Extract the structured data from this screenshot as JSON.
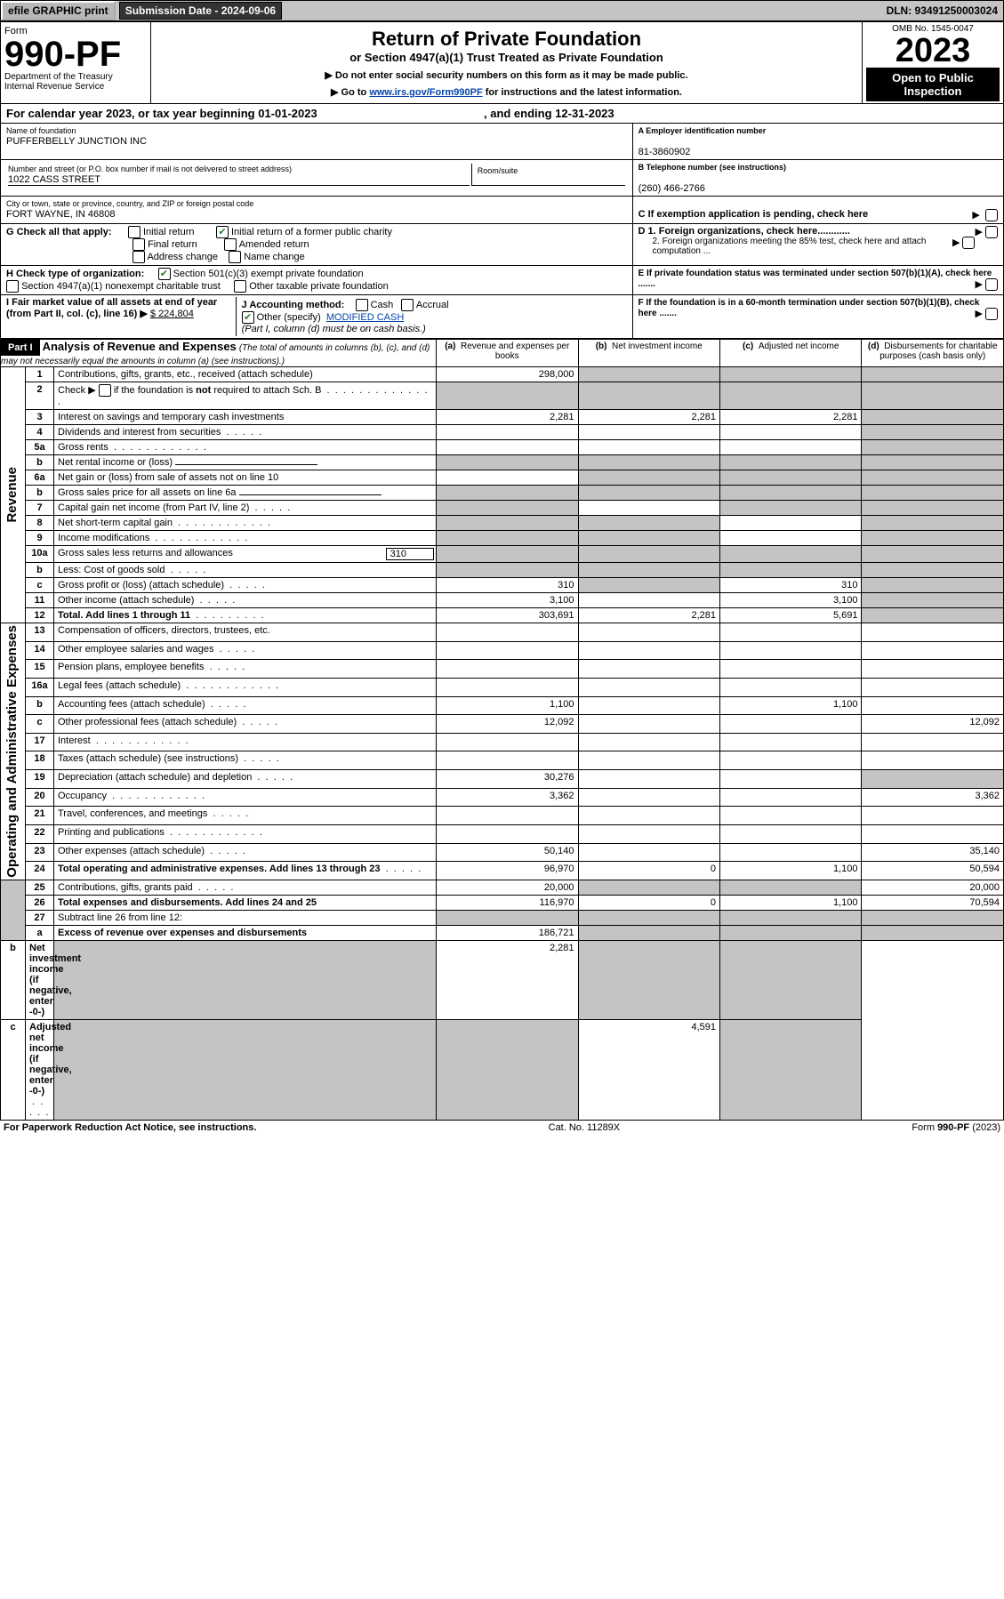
{
  "topbar": {
    "efile": "efile GRAPHIC print",
    "sub_label": "Submission Date - 2024-09-06",
    "dln": "DLN: 93491250003024"
  },
  "header": {
    "form_word": "Form",
    "form_num": "990-PF",
    "dept": "Department of the Treasury\nInternal Revenue Service",
    "title": "Return of Private Foundation",
    "subtitle": "or Section 4947(a)(1) Trust Treated as Private Foundation",
    "note1": "▶ Do not enter social security numbers on this form as it may be made public.",
    "note2_pre": "▶ Go to ",
    "note2_link": "www.irs.gov/Form990PF",
    "note2_post": " for instructions and the latest information.",
    "omb": "OMB No. 1545-0047",
    "year": "2023",
    "open": "Open to Public Inspection"
  },
  "calyear": {
    "begin": "For calendar year 2023, or tax year beginning 01-01-2023",
    "end": ", and ending 12-31-2023"
  },
  "org": {
    "name_label": "Name of foundation",
    "name": "PUFFERBELLY JUNCTION INC",
    "ein_label": "A Employer identification number",
    "ein": "81-3860902",
    "addr_label": "Number and street (or P.O. box number if mail is not delivered to street address)",
    "addr": "1022 CASS STREET",
    "room_label": "Room/suite",
    "phone_label": "B Telephone number (see instructions)",
    "phone": "(260) 466-2766",
    "city_label": "City or town, state or province, country, and ZIP or foreign postal code",
    "city": "FORT WAYNE, IN  46808",
    "c_label": "C If exemption application is pending, check here"
  },
  "g": {
    "label": "G Check all that apply:",
    "o1": "Initial return",
    "o2": "Final return",
    "o3": "Address change",
    "o4": "Initial return of a former public charity",
    "o5": "Amended return",
    "o6": "Name change"
  },
  "d": {
    "d1": "D 1. Foreign organizations, check here............",
    "d2": "2. Foreign organizations meeting the 85% test, check here and attach computation ..."
  },
  "h": {
    "label": "H Check type of organization:",
    "o1": "Section 501(c)(3) exempt private foundation",
    "o2": "Section 4947(a)(1) nonexempt charitable trust",
    "o3": "Other taxable private foundation"
  },
  "e": {
    "label": "E  If private foundation status was terminated under section 507(b)(1)(A), check here ......."
  },
  "i": {
    "label": "I Fair market value of all assets at end of year (from Part II, col. (c), line 16) ▶",
    "val": "$  224,804"
  },
  "j": {
    "label": "J Accounting method:",
    "o1": "Cash",
    "o2": "Accrual",
    "o3": "Other (specify)",
    "spec": "MODIFIED CASH",
    "note": "(Part I, column (d) must be on cash basis.)"
  },
  "f": {
    "label": "F  If the foundation is in a 60-month termination under section 507(b)(1)(B), check here ......."
  },
  "part1": {
    "head": "Part I",
    "title": "Analysis of Revenue and Expenses",
    "title_note": " (The total of amounts in columns (b), (c), and (d) may not necessarily equal the amounts in column (a) (see instructions).)",
    "col_a": "(a)",
    "col_a2": "Revenue and expenses per books",
    "col_b": "(b)",
    "col_b2": "Net investment income",
    "col_c": "(c)",
    "col_c2": "Adjusted net income",
    "col_d": "(d)",
    "col_d2": "Disbursements for charitable purposes (cash basis only)"
  },
  "revenue_label": "Revenue",
  "op_label": "Operating and Administrative Expenses",
  "rows": [
    {
      "l": "1",
      "d": "Contributions, gifts, grants, etc., received (attach schedule)",
      "a": "298,000",
      "b": "",
      "c": "",
      "dcol": "",
      "bgrey": true,
      "cgrey": true,
      "dgrey": true
    },
    {
      "l": "2",
      "d": "Check ▶ ☐ if the foundation is not required to attach Sch. B",
      "a": "",
      "b": "",
      "c": "",
      "dcol": "",
      "agrey": true,
      "bgrey": true,
      "cgrey": true,
      "dgrey": true,
      "bold_not": true,
      "dotsfull": true
    },
    {
      "l": "3",
      "d": "Interest on savings and temporary cash investments",
      "a": "2,281",
      "b": "2,281",
      "c": "2,281",
      "dcol": "",
      "dgrey": true
    },
    {
      "l": "4",
      "d": "Dividends and interest from securities",
      "a": "",
      "b": "",
      "c": "",
      "dcol": "",
      "dgrey": true,
      "dots": true
    },
    {
      "l": "5a",
      "d": "Gross rents",
      "a": "",
      "b": "",
      "c": "",
      "dcol": "",
      "dgrey": true,
      "dotsfull": true
    },
    {
      "l": "b",
      "d": "Net rental income or (loss)",
      "a": "",
      "b": "",
      "c": "",
      "dcol": "",
      "agrey": true,
      "bgrey": true,
      "cgrey": true,
      "dgrey": true,
      "underline_after": true
    },
    {
      "l": "6a",
      "d": "Net gain or (loss) from sale of assets not on line 10",
      "a": "",
      "b": "",
      "c": "",
      "dcol": "",
      "bgrey": true,
      "cgrey": true,
      "dgrey": true
    },
    {
      "l": "b",
      "d": "Gross sales price for all assets on line 6a",
      "a": "",
      "b": "",
      "c": "",
      "dcol": "",
      "agrey": true,
      "bgrey": true,
      "cgrey": true,
      "dgrey": true,
      "underline_after": true
    },
    {
      "l": "7",
      "d": "Capital gain net income (from Part IV, line 2)",
      "a": "",
      "b": "",
      "c": "",
      "dcol": "",
      "agrey": true,
      "cgrey": true,
      "dgrey": true,
      "dots": true
    },
    {
      "l": "8",
      "d": "Net short-term capital gain",
      "a": "",
      "b": "",
      "c": "",
      "dcol": "",
      "agrey": true,
      "bgrey": true,
      "dgrey": true,
      "dotsfull": true
    },
    {
      "l": "9",
      "d": "Income modifications",
      "a": "",
      "b": "",
      "c": "",
      "dcol": "",
      "agrey": true,
      "bgrey": true,
      "dgrey": true,
      "dotsfull": true
    },
    {
      "l": "10a",
      "d": "Gross sales less returns and allowances",
      "a": "",
      "b": "",
      "c": "",
      "dcol": "",
      "agrey": true,
      "bgrey": true,
      "cgrey": true,
      "dgrey": true,
      "val_inline": "310"
    },
    {
      "l": "b",
      "d": "Less: Cost of goods sold",
      "a": "",
      "b": "",
      "c": "",
      "dcol": "",
      "agrey": true,
      "bgrey": true,
      "cgrey": true,
      "dgrey": true,
      "dots": true
    },
    {
      "l": "c",
      "d": "Gross profit or (loss) (attach schedule)",
      "a": "310",
      "b": "",
      "c": "310",
      "dcol": "",
      "bgrey": true,
      "dgrey": true,
      "dots": true
    },
    {
      "l": "11",
      "d": "Other income (attach schedule)",
      "a": "3,100",
      "b": "",
      "c": "3,100",
      "dcol": "",
      "dgrey": true,
      "dots": true
    },
    {
      "l": "12",
      "d": "Total. Add lines 1 through 11",
      "a": "303,691",
      "b": "2,281",
      "c": "5,691",
      "dcol": "",
      "dgrey": true,
      "bold": true,
      "dotsfull": true
    },
    {
      "l": "13",
      "d": "Compensation of officers, directors, trustees, etc.",
      "a": "",
      "b": "",
      "c": "",
      "dcol": ""
    },
    {
      "l": "14",
      "d": "Other employee salaries and wages",
      "a": "",
      "b": "",
      "c": "",
      "dcol": "",
      "dots": true
    },
    {
      "l": "15",
      "d": "Pension plans, employee benefits",
      "a": "",
      "b": "",
      "c": "",
      "dcol": "",
      "dots": true
    },
    {
      "l": "16a",
      "d": "Legal fees (attach schedule)",
      "a": "",
      "b": "",
      "c": "",
      "dcol": "",
      "dotsfull": true
    },
    {
      "l": "b",
      "d": "Accounting fees (attach schedule)",
      "a": "1,100",
      "b": "",
      "c": "1,100",
      "dcol": "",
      "dots": true
    },
    {
      "l": "c",
      "d": "Other professional fees (attach schedule)",
      "a": "12,092",
      "b": "",
      "c": "",
      "dcol": "12,092",
      "dots": true
    },
    {
      "l": "17",
      "d": "Interest",
      "a": "",
      "b": "",
      "c": "",
      "dcol": "",
      "dotsfull": true
    },
    {
      "l": "18",
      "d": "Taxes (attach schedule) (see instructions)",
      "a": "",
      "b": "",
      "c": "",
      "dcol": "",
      "dots": true
    },
    {
      "l": "19",
      "d": "Depreciation (attach schedule) and depletion",
      "a": "30,276",
      "b": "",
      "c": "",
      "dcol": "",
      "dgrey": true,
      "dots": true
    },
    {
      "l": "20",
      "d": "Occupancy",
      "a": "3,362",
      "b": "",
      "c": "",
      "dcol": "3,362",
      "dotsfull": true
    },
    {
      "l": "21",
      "d": "Travel, conferences, and meetings",
      "a": "",
      "b": "",
      "c": "",
      "dcol": "",
      "dots": true
    },
    {
      "l": "22",
      "d": "Printing and publications",
      "a": "",
      "b": "",
      "c": "",
      "dcol": "",
      "dotsfull": true
    },
    {
      "l": "23",
      "d": "Other expenses (attach schedule)",
      "a": "50,140",
      "b": "",
      "c": "",
      "dcol": "35,140",
      "dots": true
    },
    {
      "l": "24",
      "d": "Total operating and administrative expenses. Add lines 13 through 23",
      "a": "96,970",
      "b": "0",
      "c": "1,100",
      "dcol": "50,594",
      "bold": true,
      "dots": true
    },
    {
      "l": "25",
      "d": "Contributions, gifts, grants paid",
      "a": "20,000",
      "b": "",
      "c": "",
      "dcol": "20,000",
      "bgrey": true,
      "cgrey": true,
      "dots": true
    },
    {
      "l": "26",
      "d": "Total expenses and disbursements. Add lines 24 and 25",
      "a": "116,970",
      "b": "0",
      "c": "1,100",
      "dcol": "70,594",
      "bold": true
    },
    {
      "l": "27",
      "d": "Subtract line 26 from line 12:",
      "a": "",
      "b": "",
      "c": "",
      "dcol": "",
      "agrey": true,
      "bgrey": true,
      "cgrey": true,
      "dgrey": true
    },
    {
      "l": "a",
      "d": "Excess of revenue over expenses and disbursements",
      "a": "186,721",
      "b": "",
      "c": "",
      "dcol": "",
      "bgrey": true,
      "cgrey": true,
      "dgrey": true,
      "bold": true
    },
    {
      "l": "b",
      "d": "Net investment income (if negative, enter -0-)",
      "a": "",
      "b": "2,281",
      "c": "",
      "dcol": "",
      "agrey": true,
      "cgrey": true,
      "dgrey": true,
      "bold": true
    },
    {
      "l": "c",
      "d": "Adjusted net income (if negative, enter -0-)",
      "a": "",
      "b": "",
      "c": "4,591",
      "dcol": "",
      "agrey": true,
      "bgrey": true,
      "dgrey": true,
      "bold": true,
      "dots": true
    }
  ],
  "footer": {
    "left": "For Paperwork Reduction Act Notice, see instructions.",
    "mid": "Cat. No. 11289X",
    "right": "Form 990-PF (2023)"
  },
  "colors": {
    "greybg": "#c4c4c4",
    "link": "#0645ad",
    "check": "#2e7d32"
  }
}
